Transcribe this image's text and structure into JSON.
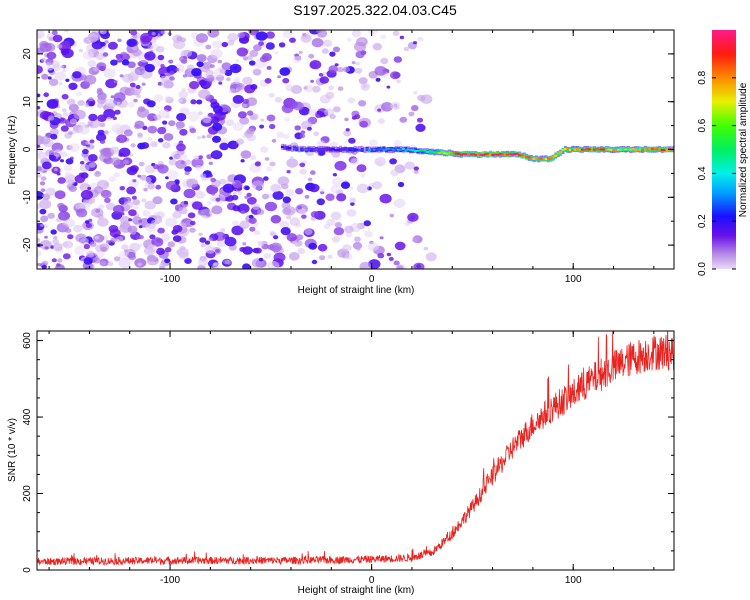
{
  "title": "S197.2025.322.04.03.C45",
  "chart_data": [
    {
      "type": "heatmap",
      "xlabel": "Height of straight line (km)",
      "ylabel": "Frequency (Hz)",
      "xlim": [
        -166,
        150
      ],
      "ylim": [
        -25,
        25
      ],
      "x_ticks": [
        -100,
        0,
        100
      ],
      "y_ticks": [
        -20,
        -10,
        0,
        10,
        20
      ],
      "colorbar": {
        "label": "Normalized spectral amplitude",
        "range": [
          0,
          1
        ],
        "ticks": [
          0.0,
          0.2,
          0.4,
          0.6,
          0.8
        ]
      },
      "noise_region_x": [
        -166,
        20
      ],
      "signal_track": [
        {
          "x": -45,
          "y": 0.4,
          "amp": 0.2
        },
        {
          "x": -35,
          "y": 0.0,
          "amp": 0.3
        },
        {
          "x": -20,
          "y": 0.0,
          "amp": 0.2
        },
        {
          "x": 0,
          "y": 0.0,
          "amp": 0.3
        },
        {
          "x": 15,
          "y": 0.0,
          "amp": 0.35
        },
        {
          "x": 30,
          "y": -0.5,
          "amp": 0.5
        },
        {
          "x": 45,
          "y": -1.0,
          "amp": 0.9
        },
        {
          "x": 60,
          "y": -1.0,
          "amp": 0.9
        },
        {
          "x": 72,
          "y": -1.0,
          "amp": 0.9
        },
        {
          "x": 80,
          "y": -2.0,
          "amp": 0.7
        },
        {
          "x": 88,
          "y": -2.0,
          "amp": 0.8
        },
        {
          "x": 95,
          "y": 0.0,
          "amp": 0.7
        },
        {
          "x": 110,
          "y": 0.0,
          "amp": 0.9
        },
        {
          "x": 125,
          "y": 0.0,
          "amp": 0.6
        },
        {
          "x": 140,
          "y": 0.0,
          "amp": 0.9
        },
        {
          "x": 150,
          "y": 0.0,
          "amp": 0.9
        }
      ]
    },
    {
      "type": "line",
      "xlabel": "Height of straight line (km)",
      "ylabel": "SNR (10 * v/v)",
      "xlim": [
        -166,
        150
      ],
      "ylim": [
        0,
        625
      ],
      "x_ticks": [
        -100,
        0,
        100
      ],
      "y_ticks": [
        0,
        200,
        400,
        600
      ],
      "color": "#e8231f",
      "series": [
        {
          "name": "SNR",
          "x": [
            -166,
            -120,
            -80,
            -40,
            0,
            20,
            30,
            40,
            50,
            60,
            70,
            80,
            90,
            100,
            110,
            120,
            130,
            140,
            150
          ],
          "y": [
            22,
            24,
            25,
            25,
            28,
            32,
            45,
            95,
            165,
            245,
            320,
            380,
            425,
            460,
            500,
            530,
            555,
            570,
            570
          ]
        }
      ]
    }
  ]
}
